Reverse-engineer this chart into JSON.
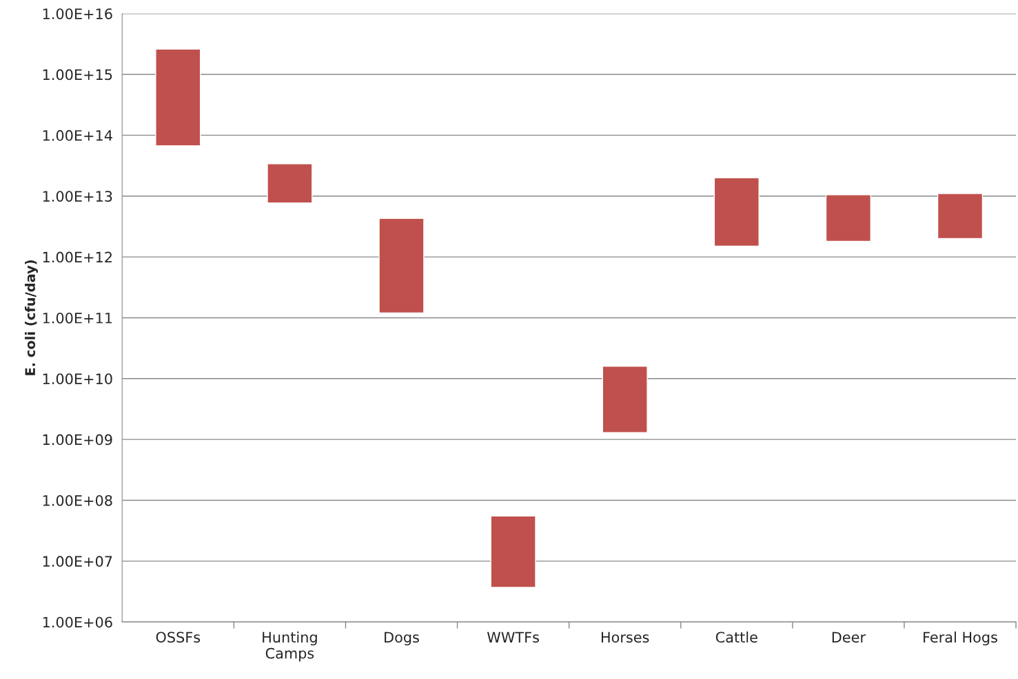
{
  "chart_data": {
    "type": "bar",
    "ylabel": "E. coli (cfu/day)",
    "categories": [
      "OSSFs",
      "Hunting\nCamps",
      "Dogs",
      "WWTFs",
      "Horses",
      "Cattle",
      "Deer",
      "Feral Hogs"
    ],
    "base": [
      67000000000000.0,
      7700000000000.0,
      120000000000.0,
      3700000.0,
      1300000000.0,
      1500000000000.0,
      1800000000000.0,
      2000000000000.0
    ],
    "values": [
      2533000000000000.0,
      26300000000000.0,
      4180000000000.0,
      51300000.0,
      14700000000.0,
      18500000000000.0,
      8700000000000.0,
      9000000000000.0
    ],
    "color": "#c0504d",
    "log": "y",
    "ylim": [
      1000000.0,
      1e+16
    ],
    "yticks": [
      {
        "value": 1000000.0,
        "label": "1.00E+06"
      },
      {
        "value": 10000000.0,
        "label": "1.00E+07"
      },
      {
        "value": 100000000.0,
        "label": "1.00E+08"
      },
      {
        "value": 1000000000.0,
        "label": "1.00E+09"
      },
      {
        "value": 10000000000.0,
        "label": "1.00E+10"
      },
      {
        "value": 100000000000.0,
        "label": "1.00E+11"
      },
      {
        "value": 1000000000000.0,
        "label": "1.00E+12"
      },
      {
        "value": 10000000000000.0,
        "label": "1.00E+13"
      },
      {
        "value": 100000000000000.0,
        "label": "1.00E+14"
      },
      {
        "value": 1000000000000000.0,
        "label": "1.00E+15"
      },
      {
        "value": 1e+16,
        "label": "1.00E+16"
      }
    ],
    "grid": "y",
    "legend": false
  }
}
